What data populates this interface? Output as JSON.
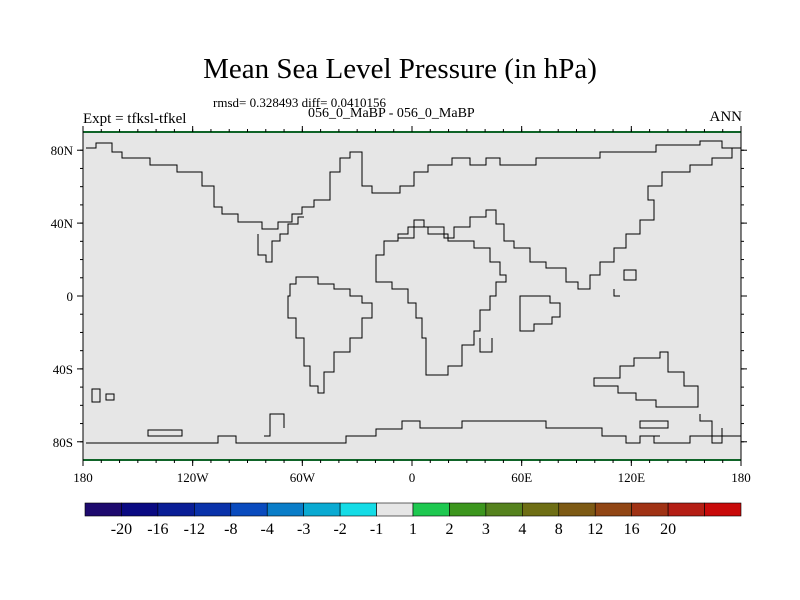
{
  "title": "Mean Sea Level Pressure (in hPa)",
  "stats_text": "rmsd= 0.328493  diff= 0.0410156",
  "case_label": "056_0_MaBP - 056_0_MaBP",
  "expt_label": "Expt = tfksl-tfkel",
  "season": "ANN",
  "chart_data": {
    "type": "heatmap",
    "title": "Mean Sea Level Pressure (in hPa)",
    "field": "difference",
    "field_uniform_bin": "-1 to 1",
    "field_color": "#e6e6e6",
    "xlabel": "",
    "ylabel": "",
    "xlim": [
      -180,
      180
    ],
    "ylim": [
      -90,
      90
    ],
    "x_ticks": [
      {
        "value": -180,
        "label": "180"
      },
      {
        "value": -120,
        "label": "120W"
      },
      {
        "value": -60,
        "label": "60W"
      },
      {
        "value": 0,
        "label": "0"
      },
      {
        "value": 60,
        "label": "60E"
      },
      {
        "value": 120,
        "label": "120E"
      },
      {
        "value": 180,
        "label": "180"
      }
    ],
    "y_ticks": [
      {
        "value": 80,
        "label": "80N"
      },
      {
        "value": 40,
        "label": "40N"
      },
      {
        "value": 0,
        "label": "0"
      },
      {
        "value": -40,
        "label": "40S"
      },
      {
        "value": -80,
        "label": "80S"
      }
    ],
    "colorbar": {
      "labels": [
        "-20",
        "-16",
        "-12",
        "-8",
        "-4",
        "-3",
        "-2",
        "-1",
        "1",
        "2",
        "3",
        "4",
        "8",
        "12",
        "16",
        "20"
      ],
      "colors": [
        "#1e0a6e",
        "#0a0a82",
        "#0a1e96",
        "#0a32aa",
        "#0a4bbe",
        "#0a7dc8",
        "#0aaad2",
        "#14dce6",
        "#e6e6e6",
        "#1ec850",
        "#3c961e",
        "#55821e",
        "#6e6e14",
        "#7d5a14",
        "#914614",
        "#a03214",
        "#b41e14",
        "#c80a0a"
      ]
    }
  }
}
